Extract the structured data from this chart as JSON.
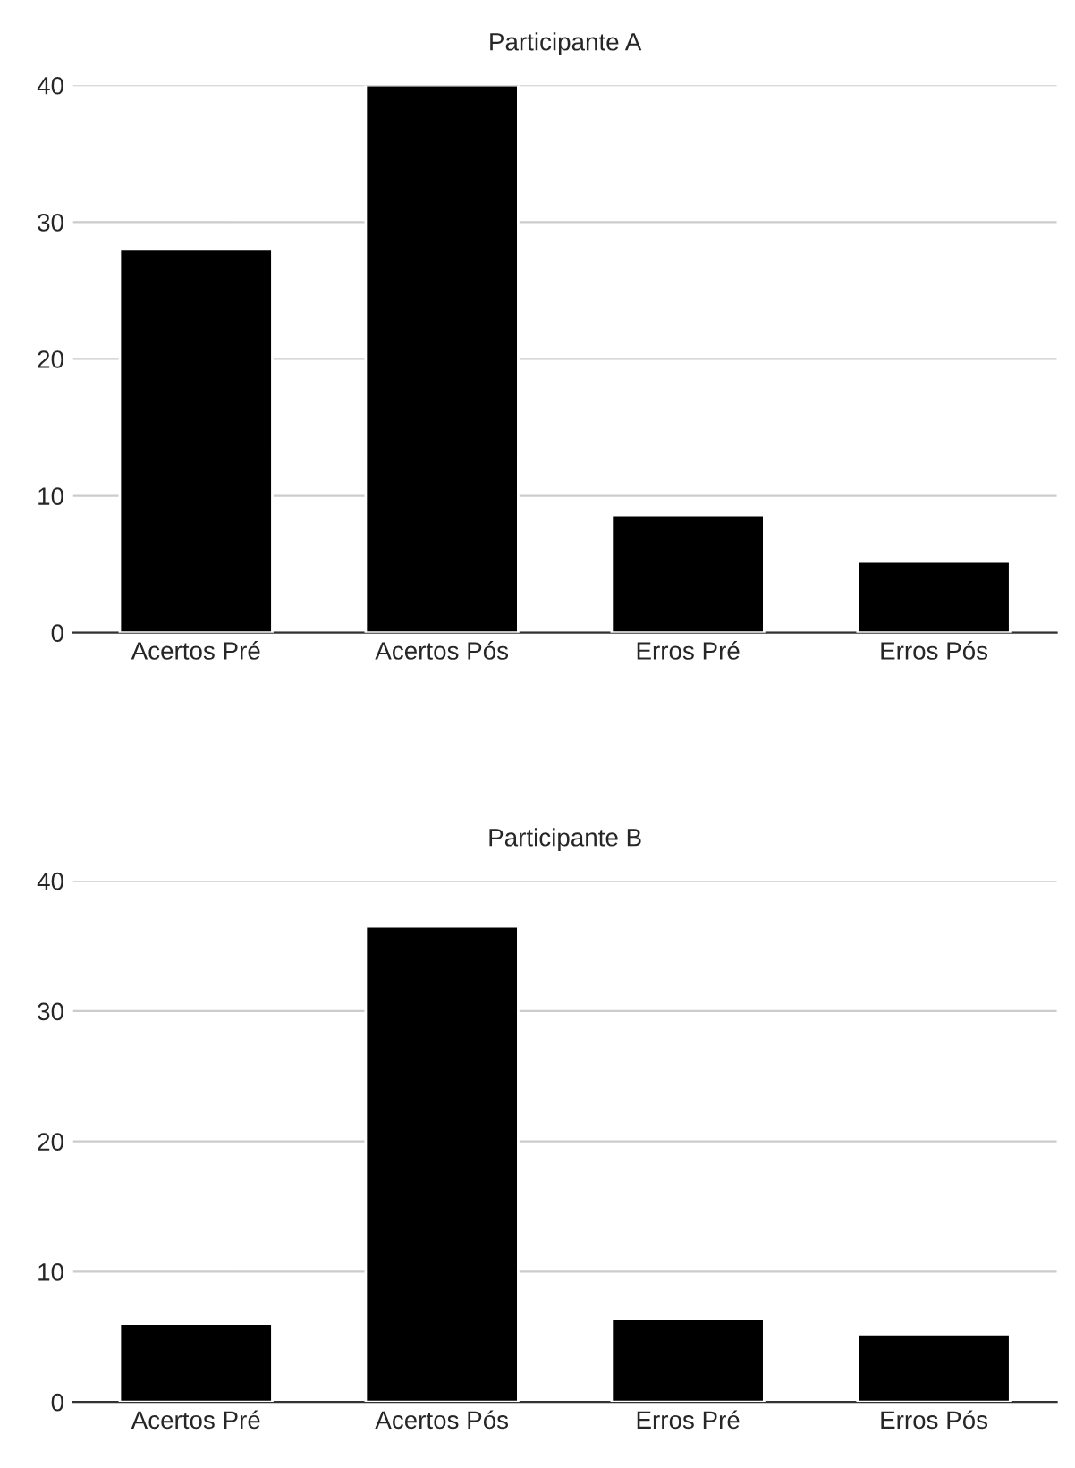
{
  "chart_data": [
    {
      "type": "bar",
      "title": "Participante A",
      "categories": [
        "Acertos Pré",
        "Acertos Pós",
        "Erros Pré",
        "Erros Pós"
      ],
      "values": [
        28,
        40,
        8.6,
        5.2
      ],
      "color": "#000000",
      "ylim": [
        0,
        40
      ],
      "yticks": [
        0,
        10,
        20,
        30,
        40
      ],
      "grid": "y"
    },
    {
      "type": "bar",
      "title": "Participante B",
      "categories": [
        "Acertos Pré",
        "Acertos Pós",
        "Erros Pré",
        "Erros Pós"
      ],
      "values": [
        6.0,
        36.5,
        6.4,
        5.2
      ],
      "color": "#000000",
      "ylim": [
        0,
        40
      ],
      "yticks": [
        0,
        10,
        20,
        30,
        40
      ],
      "grid": "y"
    }
  ]
}
